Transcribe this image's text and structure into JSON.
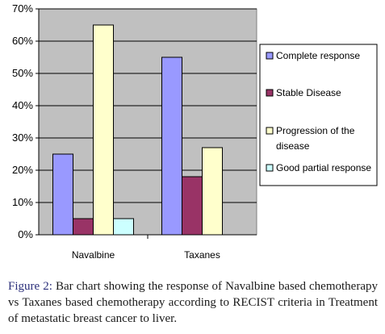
{
  "chart_data": {
    "type": "bar",
    "categories": [
      "Navalbine",
      "Taxanes"
    ],
    "series": [
      {
        "name": "Complete response",
        "values": [
          25,
          55
        ],
        "color": "#9999ff"
      },
      {
        "name": "Stable Disease",
        "values": [
          5,
          18
        ],
        "color": "#993366"
      },
      {
        "name": "Progression of the disease",
        "values": [
          65,
          27
        ],
        "color": "#ffffcc"
      },
      {
        "name": "Good partial response",
        "values": [
          5,
          null
        ],
        "color": "#ccffff"
      }
    ],
    "legend_lines": [
      [
        "Complete response"
      ],
      [
        "Stable Disease"
      ],
      [
        "Progression of the",
        "disease"
      ],
      [
        "Good partial response"
      ]
    ],
    "ylim": [
      0,
      70
    ],
    "yticks": [
      0,
      10,
      20,
      30,
      40,
      50,
      60,
      70
    ],
    "ytick_labels": [
      "0%",
      "10%",
      "20%",
      "30%",
      "40%",
      "50%",
      "60%",
      "70%"
    ],
    "grid": true,
    "legend_position": "right",
    "plot_background": "#c0c0c0"
  },
  "caption": {
    "figure_label": "Figure 2:",
    "text": "Bar chart showing the response of Navalbine based chemotherapy vs Taxanes based chemotherapy according to RECIST criteria in Treatment of metastatic breast cancer to liver."
  }
}
